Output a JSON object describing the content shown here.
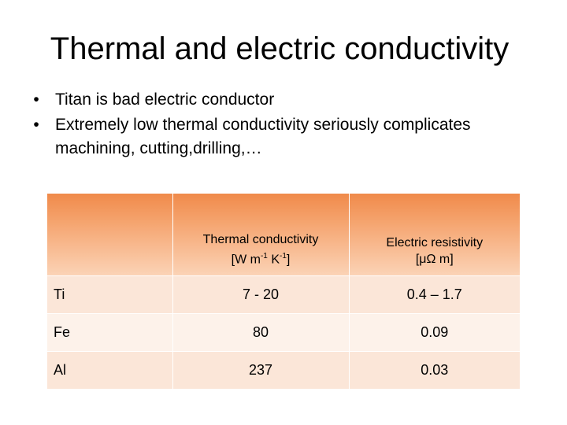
{
  "slide": {
    "title": "Thermal and electric conductivity",
    "bullets": [
      "Titan is bad electric conductor",
      "Extremely low thermal conductivity seriously complicates machining, cutting,drilling,…"
    ]
  },
  "table": {
    "headers": [
      {
        "line1": "",
        "line2": ""
      },
      {
        "line1": "Thermal conductivity",
        "unit_prefix": "[W m",
        "exp1": "-1",
        "unit_mid": " K",
        "exp2": "-1",
        "unit_suffix": "]"
      },
      {
        "line1": "Electric resistivity",
        "line2": "[μΩ  m]"
      }
    ],
    "rows": [
      {
        "material": "Ti",
        "thermal": "7 - 20",
        "resistivity": "0.4 – 1.7"
      },
      {
        "material": "Fe",
        "thermal": "80",
        "resistivity": "0.09"
      },
      {
        "material": "Al",
        "thermal": "237",
        "resistivity": "0.03"
      }
    ]
  }
}
